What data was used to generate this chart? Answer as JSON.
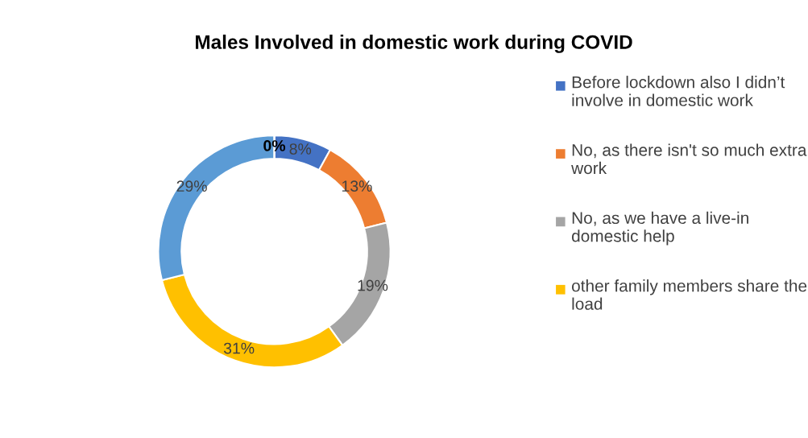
{
  "chart_data": {
    "type": "donut",
    "title": "Males Involved in domestic work during COVID",
    "categories": [
      "Before lockdown also I didn’t involve in domestic work",
      "No, as there isn't so much extra work",
      "No, as we have a live-in domestic help",
      "other family members share the load",
      null,
      null
    ],
    "values": [
      8,
      13,
      19,
      31,
      29,
      0
    ],
    "colors": [
      "#4472c4",
      "#ed7d31",
      "#a5a5a5",
      "#ffc000",
      "#5b9bd5",
      "#70ad47"
    ],
    "value_labels": [
      "8%",
      "13%",
      "19%",
      "31%",
      "29%",
      "0%"
    ],
    "legend": "right"
  }
}
